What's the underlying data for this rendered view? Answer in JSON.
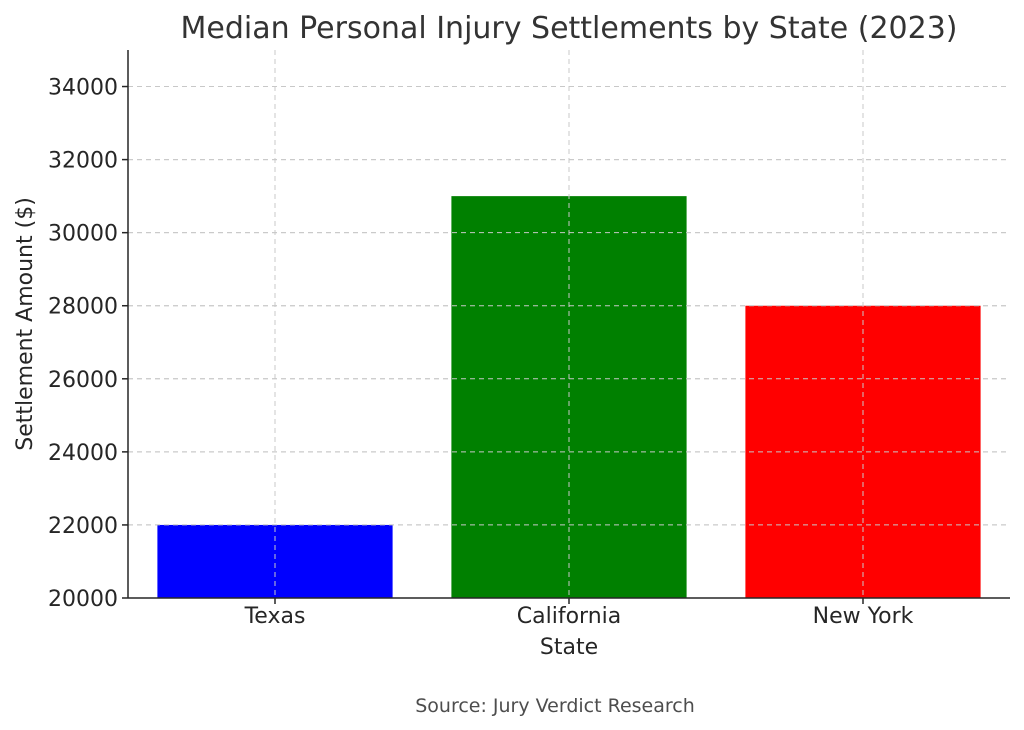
{
  "chart_data": {
    "type": "bar",
    "title": "Median Personal Injury Settlements by State (2023)",
    "xlabel": "State",
    "ylabel": "Settlement Amount ($)",
    "categories": [
      "Texas",
      "California",
      "New York"
    ],
    "values": [
      22000,
      31000,
      28000
    ],
    "colors": [
      "#0000ff",
      "#008000",
      "#ff0000"
    ],
    "ylim": [
      20000,
      35000
    ],
    "yticks": [
      20000,
      22000,
      24000,
      26000,
      28000,
      30000,
      32000,
      34000
    ],
    "grid": true,
    "source": "Source: Jury Verdict Research"
  }
}
